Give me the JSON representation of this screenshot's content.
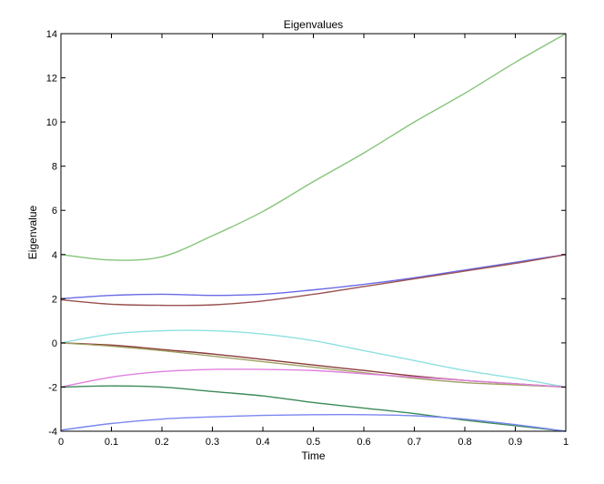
{
  "chart_data": {
    "type": "line",
    "title": "Eigenvalues",
    "xlabel": "Time",
    "ylabel": "Eigenvalue",
    "xlim": [
      0,
      1
    ],
    "ylim": [
      -4,
      14
    ],
    "xticks": [
      0,
      0.1,
      0.2,
      0.3,
      0.4,
      0.5,
      0.6,
      0.7,
      0.8,
      0.9,
      1
    ],
    "xtick_labels": [
      "0",
      "0.1",
      "0.2",
      "0.3",
      "0.4",
      "0.5",
      "0.6",
      "0.7",
      "0.8",
      "0.9",
      "1"
    ],
    "yticks": [
      -4,
      -2,
      0,
      2,
      4,
      6,
      8,
      10,
      12,
      14
    ],
    "ytick_labels": [
      "-4",
      "-2",
      "0",
      "2",
      "4",
      "6",
      "8",
      "10",
      "12",
      "14"
    ],
    "grid": false,
    "legend": "none",
    "x": [
      0,
      0.1,
      0.2,
      0.3,
      0.4,
      0.5,
      0.6,
      0.7,
      0.8,
      0.9,
      1
    ],
    "series": [
      {
        "color": "#86c47a",
        "values": [
          4.0,
          3.75,
          3.9,
          4.85,
          5.95,
          7.3,
          8.6,
          10.0,
          11.3,
          12.7,
          14.0
        ]
      },
      {
        "color": "#6a6ae8",
        "values": [
          2.0,
          2.15,
          2.2,
          2.15,
          2.2,
          2.4,
          2.65,
          2.95,
          3.3,
          3.65,
          4.0
        ]
      },
      {
        "color": "#9a5050",
        "values": [
          1.95,
          1.75,
          1.7,
          1.72,
          1.9,
          2.2,
          2.55,
          2.9,
          3.25,
          3.6,
          4.0
        ]
      },
      {
        "color": "#8fe0e0",
        "values": [
          0.0,
          0.4,
          0.55,
          0.55,
          0.4,
          0.1,
          -0.35,
          -0.8,
          -1.25,
          -1.6,
          -2.0
        ]
      },
      {
        "color": "#8a3a3a",
        "values": [
          0.0,
          -0.1,
          -0.3,
          -0.5,
          -0.75,
          -1.0,
          -1.25,
          -1.5,
          -1.7,
          -1.85,
          -2.0
        ]
      },
      {
        "color": "#a0a060",
        "values": [
          0.0,
          -0.15,
          -0.35,
          -0.6,
          -0.85,
          -1.1,
          -1.35,
          -1.6,
          -1.8,
          -1.9,
          -2.0
        ]
      },
      {
        "color": "#e080e0",
        "values": [
          -2.0,
          -1.55,
          -1.3,
          -1.2,
          -1.2,
          -1.25,
          -1.4,
          -1.55,
          -1.7,
          -1.85,
          -2.0
        ]
      },
      {
        "color": "#3c8a5a",
        "values": [
          -2.0,
          -1.95,
          -2.0,
          -2.2,
          -2.4,
          -2.7,
          -2.95,
          -3.2,
          -3.5,
          -3.75,
          -4.0
        ]
      },
      {
        "color": "#7a86f0",
        "values": [
          -3.95,
          -3.65,
          -3.45,
          -3.35,
          -3.28,
          -3.25,
          -3.25,
          -3.3,
          -3.45,
          -3.7,
          -4.0
        ]
      }
    ]
  }
}
